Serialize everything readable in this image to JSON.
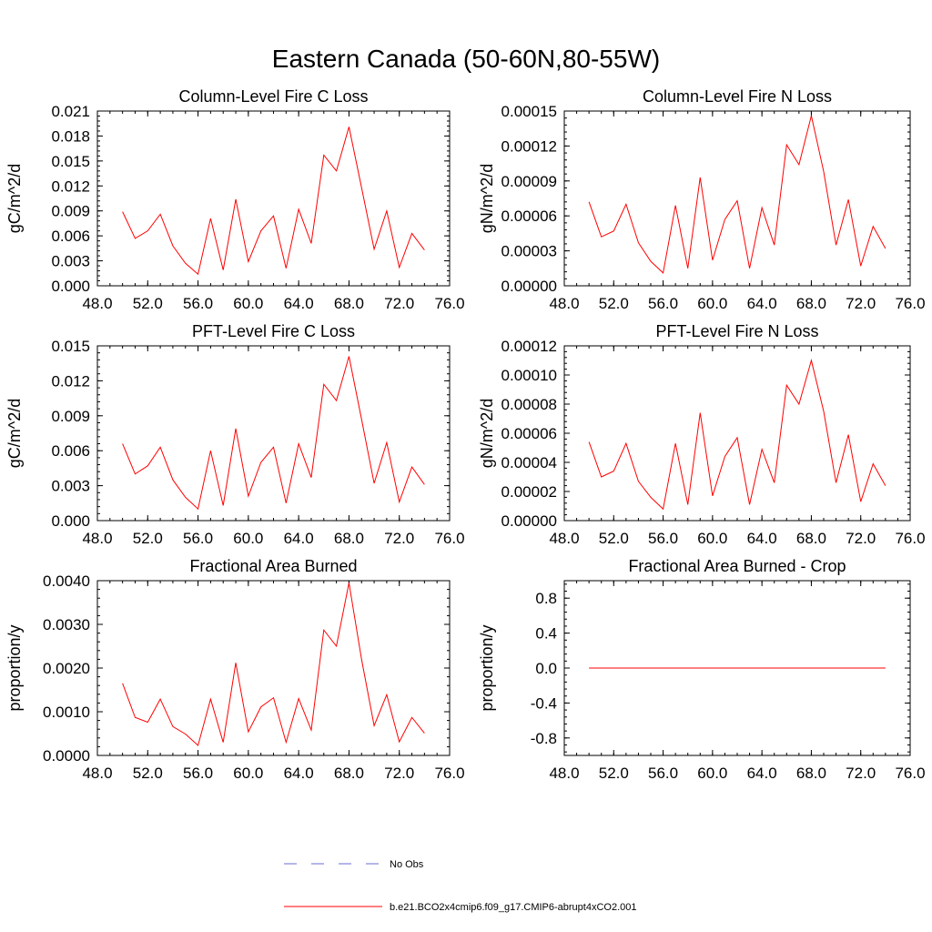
{
  "figure": {
    "title": "Eastern Canada (50-60N,80-55W)"
  },
  "legend": {
    "entries": [
      {
        "label": "No Obs",
        "color": "#6b6bd6",
        "dash": "dashed"
      },
      {
        "label": "b.e21.BCO2x4cmip6.f09_g17.CMIP6-abrupt4xCO2.001",
        "color": "#ff0000",
        "dash": "solid"
      }
    ]
  },
  "chart_data": [
    {
      "type": "line",
      "title": "Column-Level Fire C Loss",
      "xlabel": "",
      "ylabel": "gC/m^2/d",
      "xlim": [
        48,
        76
      ],
      "xticks": [
        "48.0",
        "52.0",
        "56.0",
        "60.0",
        "64.0",
        "68.0",
        "72.0",
        "76.0"
      ],
      "ylim": [
        0,
        0.021
      ],
      "yticks": [
        "0.000",
        "0.003",
        "0.006",
        "0.009",
        "0.012",
        "0.015",
        "0.018",
        "0.021"
      ],
      "series": [
        {
          "name": "b.e21.BCO2x4cmip6.f09_g17.CMIP6-abrupt4xCO2.001",
          "color": "#ff0000",
          "x": [
            50,
            51,
            52,
            53,
            54,
            55,
            56,
            57,
            58,
            59,
            60,
            61,
            62,
            63,
            64,
            65,
            66,
            67,
            68,
            69,
            70,
            71,
            72,
            73,
            74
          ],
          "y": [
            0.0089,
            0.0057,
            0.0066,
            0.0086,
            0.0048,
            0.0027,
            0.0014,
            0.0081,
            0.0019,
            0.0104,
            0.0029,
            0.0066,
            0.0084,
            0.0021,
            0.0092,
            0.0051,
            0.0157,
            0.0138,
            0.0191,
            0.0118,
            0.0044,
            0.009,
            0.0022,
            0.0063,
            0.0043
          ]
        }
      ]
    },
    {
      "type": "line",
      "title": "Column-Level Fire N Loss",
      "xlabel": "",
      "ylabel": "gN/m^2/d",
      "xlim": [
        48,
        76
      ],
      "xticks": [
        "48.0",
        "52.0",
        "56.0",
        "60.0",
        "64.0",
        "68.0",
        "72.0",
        "76.0"
      ],
      "ylim": [
        0,
        0.00015
      ],
      "yticks": [
        "0.00000",
        "0.00003",
        "0.00006",
        "0.00009",
        "0.00012",
        "0.00015"
      ],
      "series": [
        {
          "name": "b.e21.BCO2x4cmip6.f09_g17.CMIP6-abrupt4xCO2.001",
          "color": "#ff0000",
          "x": [
            50,
            51,
            52,
            53,
            54,
            55,
            56,
            57,
            58,
            59,
            60,
            61,
            62,
            63,
            64,
            65,
            66,
            67,
            68,
            69,
            70,
            71,
            72,
            73,
            74
          ],
          "y": [
            7.2e-05,
            4.2e-05,
            4.7e-05,
            7e-05,
            3.7e-05,
            2.1e-05,
            1.1e-05,
            6.9e-05,
            1.5e-05,
            9.3e-05,
            2.2e-05,
            5.7e-05,
            7.3e-05,
            1.5e-05,
            6.7e-05,
            3.5e-05,
            0.000121,
            0.000104,
            0.000146,
            9.8e-05,
            3.5e-05,
            7.4e-05,
            1.7e-05,
            5.1e-05,
            3.2e-05
          ]
        }
      ]
    },
    {
      "type": "line",
      "title": "PFT-Level Fire C Loss",
      "xlabel": "",
      "ylabel": "gC/m^2/d",
      "xlim": [
        48,
        76
      ],
      "xticks": [
        "48.0",
        "52.0",
        "56.0",
        "60.0",
        "64.0",
        "68.0",
        "72.0",
        "76.0"
      ],
      "ylim": [
        0,
        0.015
      ],
      "yticks": [
        "0.000",
        "0.003",
        "0.006",
        "0.009",
        "0.012",
        "0.015"
      ],
      "series": [
        {
          "name": "b.e21.BCO2x4cmip6.f09_g17.CMIP6-abrupt4xCO2.001",
          "color": "#ff0000",
          "x": [
            50,
            51,
            52,
            53,
            54,
            55,
            56,
            57,
            58,
            59,
            60,
            61,
            62,
            63,
            64,
            65,
            66,
            67,
            68,
            69,
            70,
            71,
            72,
            73,
            74
          ],
          "y": [
            0.0066,
            0.004,
            0.0047,
            0.0063,
            0.0035,
            0.002,
            0.001,
            0.006,
            0.0013,
            0.0079,
            0.0021,
            0.005,
            0.0063,
            0.0015,
            0.0066,
            0.0037,
            0.0117,
            0.0103,
            0.0141,
            0.0087,
            0.0032,
            0.0067,
            0.0016,
            0.0046,
            0.0031
          ]
        }
      ]
    },
    {
      "type": "line",
      "title": "PFT-Level Fire N Loss",
      "xlabel": "",
      "ylabel": "gN/m^2/d",
      "xlim": [
        48,
        76
      ],
      "xticks": [
        "48.0",
        "52.0",
        "56.0",
        "60.0",
        "64.0",
        "68.0",
        "72.0",
        "76.0"
      ],
      "ylim": [
        0,
        0.00012
      ],
      "yticks": [
        "0.00000",
        "0.00002",
        "0.00004",
        "0.00006",
        "0.00008",
        "0.00010",
        "0.00012"
      ],
      "series": [
        {
          "name": "b.e21.BCO2x4cmip6.f09_g17.CMIP6-abrupt4xCO2.001",
          "color": "#ff0000",
          "x": [
            50,
            51,
            52,
            53,
            54,
            55,
            56,
            57,
            58,
            59,
            60,
            61,
            62,
            63,
            64,
            65,
            66,
            67,
            68,
            69,
            70,
            71,
            72,
            73,
            74
          ],
          "y": [
            5.4e-05,
            3e-05,
            3.4e-05,
            5.3e-05,
            2.7e-05,
            1.6e-05,
            8e-06,
            5.3e-05,
            1.1e-05,
            7.4e-05,
            1.7e-05,
            4.4e-05,
            5.7e-05,
            1.1e-05,
            4.9e-05,
            2.6e-05,
            9.3e-05,
            8e-05,
            0.00011,
            7.5e-05,
            2.6e-05,
            5.9e-05,
            1.3e-05,
            3.9e-05,
            2.4e-05
          ]
        }
      ]
    },
    {
      "type": "line",
      "title": "Fractional Area Burned",
      "xlabel": "",
      "ylabel": "proportion/y",
      "xlim": [
        48,
        76
      ],
      "xticks": [
        "48.0",
        "52.0",
        "56.0",
        "60.0",
        "64.0",
        "68.0",
        "72.0",
        "76.0"
      ],
      "ylim": [
        0,
        0.004
      ],
      "yticks": [
        "0.0000",
        "0.0010",
        "0.0020",
        "0.0030",
        "0.0040"
      ],
      "series": [
        {
          "name": "b.e21.BCO2x4cmip6.f09_g17.CMIP6-abrupt4xCO2.001",
          "color": "#ff0000",
          "x": [
            50,
            51,
            52,
            53,
            54,
            55,
            56,
            57,
            58,
            59,
            60,
            61,
            62,
            63,
            64,
            65,
            66,
            67,
            68,
            69,
            70,
            71,
            72,
            73,
            74
          ],
          "y": [
            0.00165,
            0.00087,
            0.00076,
            0.00129,
            0.00066,
            0.00049,
            0.00023,
            0.00129,
            0.0003,
            0.00212,
            0.00054,
            0.00111,
            0.00132,
            0.0003,
            0.0013,
            0.00058,
            0.00287,
            0.0025,
            0.00395,
            0.0022,
            0.00068,
            0.00139,
            0.00031,
            0.00087,
            0.00051
          ]
        }
      ]
    },
    {
      "type": "line",
      "title": "Fractional Area Burned - Crop",
      "xlabel": "",
      "ylabel": "proportion/y",
      "xlim": [
        48,
        76
      ],
      "xticks": [
        "48.0",
        "52.0",
        "56.0",
        "60.0",
        "64.0",
        "68.0",
        "72.0",
        "76.0"
      ],
      "ylim": [
        -1.0,
        1.0
      ],
      "yticks": [
        "-0.8",
        "-0.4",
        "0.0",
        "0.4",
        "0.8"
      ],
      "ytick_values": [
        -0.8,
        -0.4,
        0.0,
        0.4,
        0.8
      ],
      "series": [
        {
          "name": "b.e21.BCO2x4cmip6.f09_g17.CMIP6-abrupt4xCO2.001",
          "color": "#ff0000",
          "x": [
            50,
            51,
            52,
            53,
            54,
            55,
            56,
            57,
            58,
            59,
            60,
            61,
            62,
            63,
            64,
            65,
            66,
            67,
            68,
            69,
            70,
            71,
            72,
            73,
            74
          ],
          "y": [
            0,
            0,
            0,
            0,
            0,
            0,
            0,
            0,
            0,
            0,
            0,
            0,
            0,
            0,
            0,
            0,
            0,
            0,
            0,
            0,
            0,
            0,
            0,
            0,
            0
          ]
        }
      ]
    }
  ]
}
